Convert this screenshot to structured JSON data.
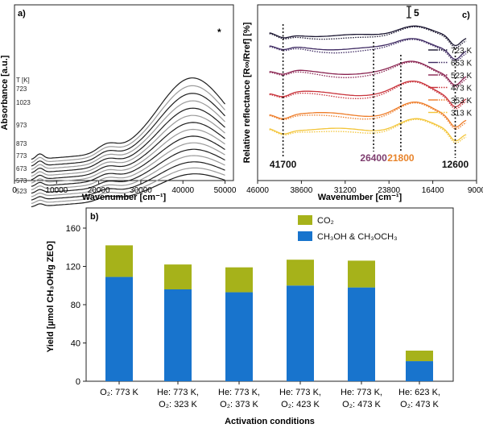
{
  "panel_labels": {
    "a": "a)",
    "b": "b)",
    "c": "c)"
  },
  "chart_data": [
    {
      "id": "a",
      "type": "line",
      "xlabel": "Wavenumber [cm⁻¹]",
      "ylabel": "Absorbance [a.u.]",
      "xlim": [
        0,
        52000
      ],
      "xticks": [
        "0",
        "10000",
        "20000",
        "30000",
        "40000",
        "50000"
      ],
      "xtick_values": [
        0,
        10000,
        20000,
        30000,
        40000,
        50000
      ],
      "temperature_header": "T [K]",
      "temperatures": [
        "723",
        "1023",
        "973",
        "873",
        "773",
        "673",
        "573",
        "523"
      ],
      "series_count": 15,
      "marker": "*"
    },
    {
      "id": "b",
      "type": "bar",
      "stacked": true,
      "title": "",
      "xlabel": "Activation conditions",
      "ylabel": "Yield [µmol CH₃OH/g ZEO]",
      "ylim": [
        0,
        160
      ],
      "yticks": [
        0,
        40,
        80,
        120,
        160
      ],
      "categories": [
        [
          "O₂: 773 K"
        ],
        [
          "He: 773 K,",
          "O₂: 323 K"
        ],
        [
          "He: 773 K,",
          "O₂: 373 K"
        ],
        [
          "He: 773 K,",
          "O₂: 423 K"
        ],
        [
          "He: 773 K,",
          "O₂: 473 K"
        ],
        [
          "He: 623 K,",
          "O₂: 473 K"
        ]
      ],
      "series": [
        {
          "name": "CH₃OH & CH₃OCH₃",
          "color": "#1874cd",
          "values": [
            109,
            96,
            93,
            100,
            98,
            21
          ]
        },
        {
          "name": "CO₂",
          "color": "#a6b21a",
          "values": [
            33,
            26,
            26,
            27,
            28,
            11
          ]
        }
      ],
      "legend_position": "top-right"
    },
    {
      "id": "c",
      "type": "line",
      "xlabel": "Wavenumber [cm⁻¹]",
      "ylabel": "Relative reflectance [R∞/Rref] [%]",
      "xlim": [
        46000,
        9000
      ],
      "xticks": [
        "46000",
        "38600",
        "31200",
        "23800",
        "16400",
        "9000"
      ],
      "xtick_values": [
        46000,
        38600,
        31200,
        23800,
        16400,
        9000
      ],
      "scale_bar": "5",
      "marker_lines": [
        {
          "value": 41700,
          "label": "41700",
          "color": "#111111"
        },
        {
          "value": 26400,
          "label": "26400",
          "color": "#7d3c6e"
        },
        {
          "value": 21800,
          "label": "21800",
          "color": "#e8832a"
        },
        {
          "value": 12600,
          "label": "12600",
          "color": "#111111"
        }
      ],
      "series": [
        {
          "name": "723 K",
          "color": "#1a1530"
        },
        {
          "name": "653 K",
          "color": "#3f2b63"
        },
        {
          "name": "523 K",
          "color": "#8a2451"
        },
        {
          "name": "473 K",
          "color": "#c9353d"
        },
        {
          "name": "353 K",
          "color": "#ee7d2a"
        },
        {
          "name": "313 K",
          "color": "#f3c53a"
        }
      ]
    }
  ]
}
